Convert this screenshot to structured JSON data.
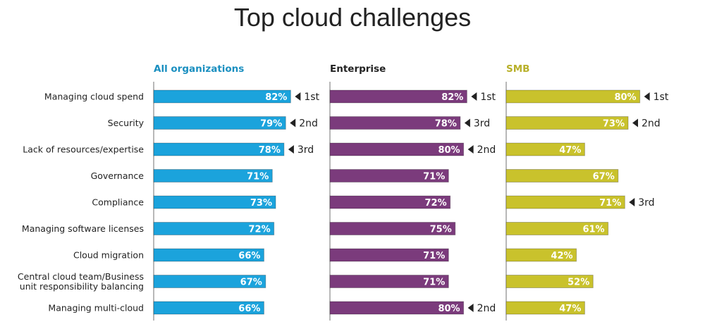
{
  "chart_data": {
    "type": "bar",
    "title": "Top cloud challenges",
    "categories": [
      "Managing cloud spend",
      "Security",
      "Lack of resources/expertise",
      "Governance",
      "Compliance",
      "Managing software licenses",
      "Cloud migration",
      "Central cloud team/Business unit responsibility balancing",
      "Managing multi-cloud"
    ],
    "category_lines": [
      [
        "Managing cloud spend"
      ],
      [
        "Security"
      ],
      [
        "Lack of resources/expertise"
      ],
      [
        "Governance"
      ],
      [
        "Compliance"
      ],
      [
        "Managing software licenses"
      ],
      [
        "Cloud migration"
      ],
      [
        "Central cloud team/Business",
        "unit responsibility balancing"
      ],
      [
        "Managing multi-cloud"
      ]
    ],
    "value_suffix": "%",
    "series": [
      {
        "name": "All organizations",
        "color": "#1ba3dc",
        "header_color": "#1a8fc0",
        "values": [
          82,
          79,
          78,
          71,
          73,
          72,
          66,
          67,
          66
        ],
        "ranks": [
          "1st",
          "2nd",
          "3rd",
          "",
          "",
          "",
          "",
          "",
          ""
        ]
      },
      {
        "name": "Enterprise",
        "color": "#7b3b7c",
        "header_color": "#222222",
        "values": [
          82,
          78,
          80,
          71,
          72,
          75,
          71,
          71,
          80
        ],
        "ranks": [
          "1st",
          "3rd",
          "2nd",
          "",
          "",
          "",
          "",
          "",
          "2nd"
        ]
      },
      {
        "name": "SMB",
        "color": "#c9c22c",
        "header_color": "#b8b02a",
        "values": [
          80,
          73,
          47,
          67,
          71,
          61,
          42,
          52,
          47
        ],
        "ranks": [
          "1st",
          "2nd",
          "",
          "",
          "3rd",
          "",
          "",
          "",
          ""
        ]
      }
    ],
    "xlim": [
      0,
      100
    ],
    "grid": false,
    "legend": "none"
  }
}
